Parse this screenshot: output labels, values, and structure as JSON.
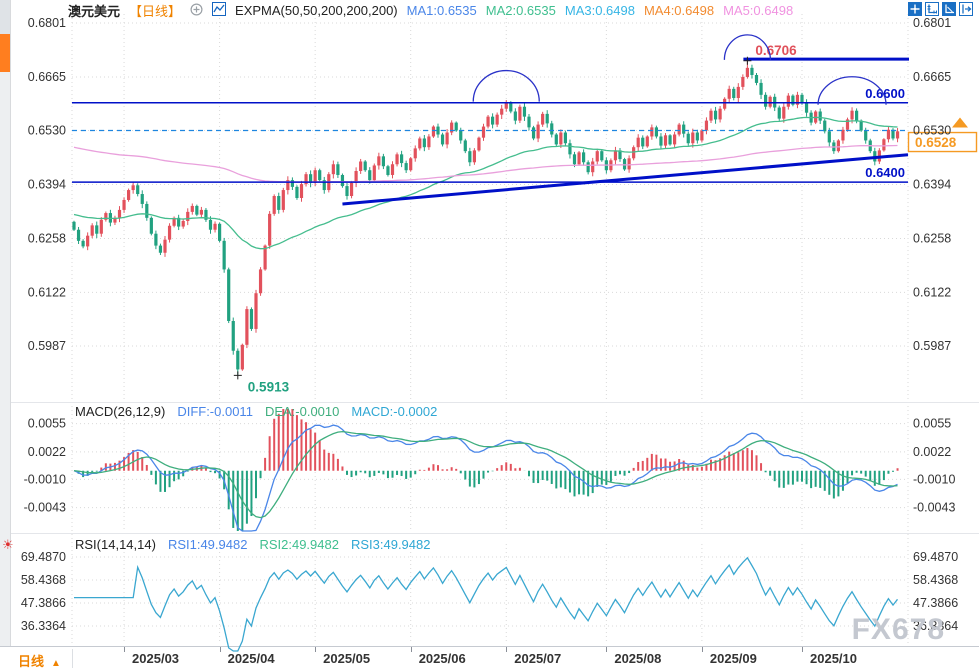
{
  "header": {
    "symbol": "澳元美元",
    "period_tag": "【日线】",
    "indicator_label": "EXPMA(50,50,200,200,200)",
    "ma_items": [
      {
        "label": "MA1:0.6535",
        "color": "#4a86e8"
      },
      {
        "label": "MA2:0.6535",
        "color": "#3fbf8f"
      },
      {
        "label": "MA3:0.6498",
        "color": "#35b5e5"
      },
      {
        "label": "MA4:0.6498",
        "color": "#f28b30"
      },
      {
        "label": "MA5:0.6498",
        "color": "#f092e0"
      }
    ]
  },
  "macd_header": {
    "name": "MACD(26,12,9)",
    "items": [
      {
        "label": "DIFF:-0.0011",
        "color": "#4a86e8"
      },
      {
        "label": "DEA:-0.0010",
        "color": "#3fae7e"
      },
      {
        "label": "MACD:-0.0002",
        "color": "#2fa7d4"
      }
    ]
  },
  "rsi_header": {
    "name": "RSI(14,14,14)",
    "items": [
      {
        "label": "RSI1:49.9482",
        "color": "#4a86e8"
      },
      {
        "label": "RSI2:49.9482",
        "color": "#3fbf8f"
      },
      {
        "label": "RSI3:49.9482",
        "color": "#2fa7d4"
      }
    ]
  },
  "bottom_bar": {
    "period_label": "日线",
    "arrow": "▲"
  },
  "watermark": "FX678",
  "chart_data": [
    {
      "type": "candlestick",
      "panel": "price",
      "title": "澳元美元 【日线】",
      "ylabel_texts": [
        "0.6801",
        "0.6665",
        "0.6530",
        "0.6394",
        "0.6258",
        "0.6122",
        "0.5987"
      ],
      "ylabel_values": [
        0.6801,
        0.6665,
        0.653,
        0.6394,
        0.6258,
        0.6122,
        0.5987
      ],
      "x_month_labels": [
        "2025/03",
        "2025/04",
        "2025/05",
        "2025/06",
        "2025/07",
        "2025/08",
        "2025/09",
        "2025/10"
      ],
      "month_start_indices": [
        11,
        32,
        53,
        74,
        95,
        117,
        138,
        160
      ],
      "first_open": 0.63,
      "closes": [
        0.628,
        0.6252,
        0.6238,
        0.6265,
        0.6291,
        0.627,
        0.6305,
        0.6322,
        0.6298,
        0.631,
        0.633,
        0.6355,
        0.638,
        0.6392,
        0.637,
        0.6345,
        0.631,
        0.627,
        0.624,
        0.6222,
        0.6255,
        0.629,
        0.631,
        0.6288,
        0.6302,
        0.6325,
        0.634,
        0.6318,
        0.633,
        0.6305,
        0.628,
        0.6295,
        0.6252,
        0.618,
        0.605,
        0.5975,
        0.5928,
        0.599,
        0.608,
        0.603,
        0.612,
        0.618,
        0.624,
        0.632,
        0.6365,
        0.633,
        0.638,
        0.6405,
        0.6388,
        0.636,
        0.6395,
        0.642,
        0.6398,
        0.643,
        0.6405,
        0.638,
        0.642,
        0.6445,
        0.6418,
        0.639,
        0.6365,
        0.6398,
        0.6428,
        0.6452,
        0.643,
        0.6405,
        0.6442,
        0.6465,
        0.644,
        0.6418,
        0.6445,
        0.647,
        0.6448,
        0.643,
        0.646,
        0.6485,
        0.651,
        0.6488,
        0.6515,
        0.654,
        0.652,
        0.6495,
        0.6525,
        0.655,
        0.653,
        0.6505,
        0.6478,
        0.645,
        0.648,
        0.6512,
        0.654,
        0.6565,
        0.6545,
        0.657,
        0.6585,
        0.66,
        0.6578,
        0.6555,
        0.659,
        0.6565,
        0.6538,
        0.651,
        0.6545,
        0.6572,
        0.6548,
        0.652,
        0.6495,
        0.6525,
        0.6498,
        0.647,
        0.6445,
        0.6475,
        0.645,
        0.6425,
        0.6452,
        0.6478,
        0.6455,
        0.643,
        0.6455,
        0.648,
        0.6458,
        0.6432,
        0.646,
        0.6488,
        0.6512,
        0.649,
        0.6515,
        0.6538,
        0.6515,
        0.6492,
        0.6518,
        0.6495,
        0.652,
        0.6545,
        0.6522,
        0.6498,
        0.6525,
        0.6505,
        0.653,
        0.6555,
        0.658,
        0.6558,
        0.6585,
        0.661,
        0.6635,
        0.6612,
        0.664,
        0.6665,
        0.6688,
        0.667,
        0.665,
        0.662,
        0.659,
        0.6615,
        0.6588,
        0.656,
        0.659,
        0.6618,
        0.6595,
        0.662,
        0.66,
        0.6575,
        0.655,
        0.6578,
        0.6555,
        0.6528,
        0.65,
        0.6478,
        0.6505,
        0.6532,
        0.6558,
        0.658,
        0.6555,
        0.653,
        0.6505,
        0.6478,
        0.6452,
        0.648,
        0.6508,
        0.6532,
        0.651,
        0.6528
      ],
      "high_overrides": {
        "148": 0.6706
      },
      "low_overrides": {
        "36": 0.5913
      },
      "up_color": "#e2515c",
      "down_color": "#21a180",
      "ema_overlays": [
        {
          "period": 50,
          "seed": 0.632,
          "color": "#45bd8e"
        },
        {
          "period": 200,
          "seed": 0.649,
          "color": "#e9a0dc"
        }
      ],
      "annotations": {
        "line_color": "#0010c8",
        "hlines": [
          {
            "price": 0.66,
            "label": "0.6600"
          },
          {
            "price": 0.64,
            "label": "0.6400"
          }
        ],
        "resistance": {
          "price": 0.671,
          "label": "0.6706",
          "label_color": "#e0505a"
        },
        "high_marker": {
          "index": 148,
          "price": 0.6706
        },
        "low_marker": {
          "index": 36,
          "price": 0.5913,
          "label": "0.5913",
          "color": "#21a180"
        },
        "trendline": {
          "i1": 59,
          "p1": 0.6345,
          "p2": 0.6469
        },
        "arcs": [
          {
            "i": 95,
            "base_price": 0.6603,
            "rx": 33,
            "ry": 31
          },
          {
            "i": 148,
            "base_price": 0.6708,
            "rx": 23,
            "ry": 25
          },
          {
            "i": 171,
            "base_price": 0.6595,
            "rx": 34,
            "ry": 28
          }
        ],
        "current_price": {
          "value": 0.653,
          "tag": "0.6528",
          "color": "#f59a23"
        }
      }
    },
    {
      "type": "macd",
      "panel": "macd",
      "fast": 12,
      "slow": 26,
      "signal": 9,
      "ylabel_texts": [
        "0.0055",
        "0.0022",
        "-0.0010",
        "-0.0043"
      ],
      "ylabel_values": [
        0.0055,
        0.0022,
        -0.001,
        -0.0043
      ],
      "diff_color": "#4a86e8",
      "dea_color": "#3fae7e",
      "hist_up_color": "#e2515c",
      "hist_down_color": "#21a180"
    },
    {
      "type": "rsi",
      "panel": "rsi",
      "period": 14,
      "ylabel_texts": [
        "69.4870",
        "58.4368",
        "47.3866",
        "36.3364"
      ],
      "ylabel_values": [
        69.487,
        58.4368,
        47.3866,
        36.3364
      ],
      "color": "#3aa7d0"
    }
  ]
}
